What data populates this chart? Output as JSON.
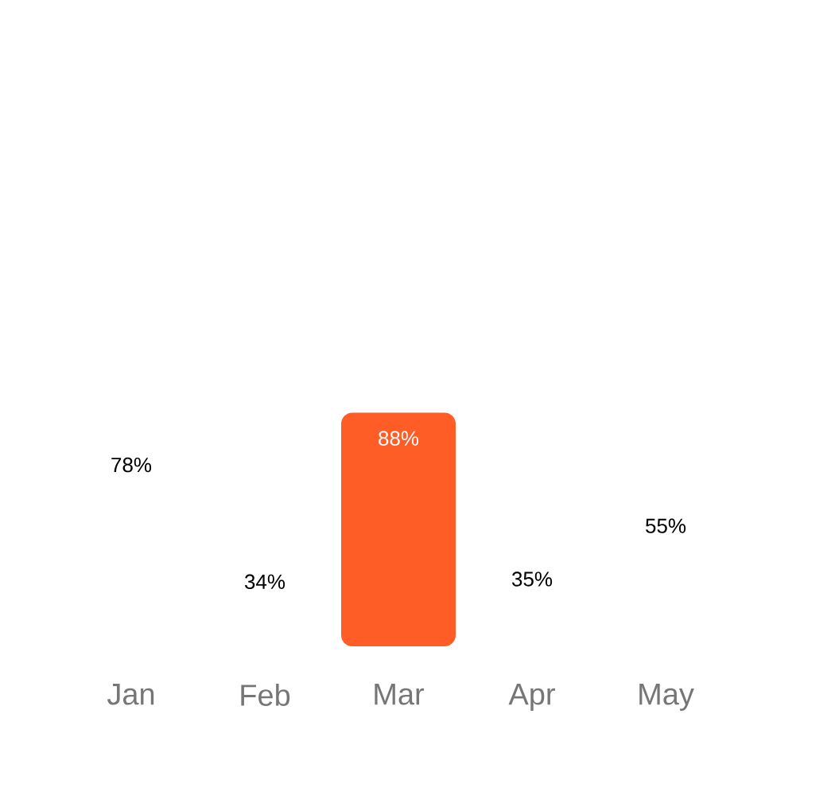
{
  "chart_data": {
    "type": "bar",
    "categories": [
      "Jan",
      "Feb",
      "Mar",
      "Apr",
      "May"
    ],
    "values": [
      78,
      34,
      88,
      35,
      55
    ],
    "colors": [
      "#ffffff",
      "#ffffff",
      "#ff5c26",
      "#ffffff",
      "#ffffff"
    ],
    "value_labels": [
      "78%",
      "34%",
      "88%",
      "35%",
      "55%"
    ]
  }
}
